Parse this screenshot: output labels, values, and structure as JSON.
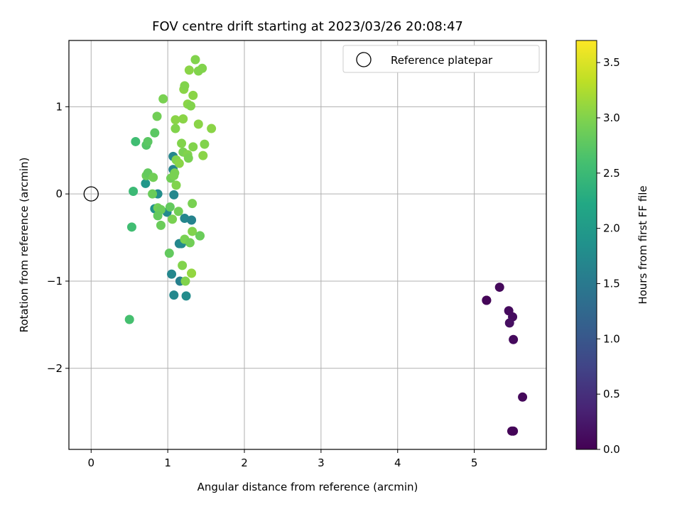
{
  "chart_data": {
    "type": "scatter",
    "title": "FOV centre drift starting at 2023/03/26 20:08:47",
    "xlabel": "Angular distance from reference (arcmin)",
    "ylabel": "Rotation from reference (arcmin)",
    "xlim": [
      -0.29,
      5.94
    ],
    "ylim": [
      -2.93,
      1.76
    ],
    "xticks": [
      0,
      1,
      2,
      3,
      4,
      5
    ],
    "yticks": [
      -2,
      -1,
      0,
      1
    ],
    "xtick_labels": [
      "0",
      "1",
      "2",
      "3",
      "4",
      "5"
    ],
    "ytick_labels": [
      "−2",
      "−1",
      "0",
      "1"
    ],
    "grid": true,
    "legend": {
      "location": "upper-right",
      "entries": [
        "Reference platepar"
      ]
    },
    "reference_point": {
      "label": "Reference platepar",
      "x": 0.0,
      "y": 0.0,
      "marker": "open-circle"
    },
    "colorbar": {
      "label": "Hours from first FF file",
      "colormap": "viridis",
      "range": [
        0.0,
        3.7
      ],
      "ticks": [
        0.0,
        0.5,
        1.0,
        1.5,
        2.0,
        2.5,
        3.0,
        3.5
      ],
      "tick_labels": [
        "0.0",
        "0.5",
        "1.0",
        "1.5",
        "2.0",
        "2.5",
        "3.0",
        "3.5"
      ]
    },
    "series": [
      {
        "points": [
          {
            "x": 5.16,
            "y": -1.22,
            "c": 0.02
          },
          {
            "x": 5.16,
            "y": -1.22,
            "c": 0.05
          },
          {
            "x": 5.33,
            "y": -1.07,
            "c": 0.08
          },
          {
            "x": 5.45,
            "y": -1.34,
            "c": 0.1
          },
          {
            "x": 5.5,
            "y": -1.41,
            "c": 0.12
          },
          {
            "x": 5.46,
            "y": -1.48,
            "c": 0.15
          },
          {
            "x": 5.51,
            "y": -1.67,
            "c": 0.1
          },
          {
            "x": 5.63,
            "y": -2.33,
            "c": 0.08
          },
          {
            "x": 5.49,
            "y": -2.72,
            "c": 0.05
          },
          {
            "x": 5.51,
            "y": -2.72,
            "c": 0.04
          },
          {
            "x": 1.07,
            "y": 0.43,
            "c": 1.7
          },
          {
            "x": 1.07,
            "y": 0.28,
            "c": 1.65
          },
          {
            "x": 1.08,
            "y": -0.01,
            "c": 1.72
          },
          {
            "x": 0.87,
            "y": 0.0,
            "c": 1.8
          },
          {
            "x": 0.83,
            "y": -0.17,
            "c": 1.85
          },
          {
            "x": 0.99,
            "y": -0.21,
            "c": 1.75
          },
          {
            "x": 1.22,
            "y": -0.28,
            "c": 1.7
          },
          {
            "x": 1.31,
            "y": -0.3,
            "c": 1.65
          },
          {
            "x": 1.15,
            "y": -0.57,
            "c": 1.7
          },
          {
            "x": 1.18,
            "y": -0.57,
            "c": 1.75
          },
          {
            "x": 1.05,
            "y": -0.92,
            "c": 1.7
          },
          {
            "x": 1.16,
            "y": -1.0,
            "c": 1.6
          },
          {
            "x": 1.08,
            "y": -1.16,
            "c": 1.72
          },
          {
            "x": 1.24,
            "y": -1.17,
            "c": 1.78
          },
          {
            "x": 0.71,
            "y": 0.12,
            "c": 1.95
          },
          {
            "x": 0.58,
            "y": 0.6,
            "c": 2.55
          },
          {
            "x": 0.55,
            "y": 0.03,
            "c": 2.5
          },
          {
            "x": 0.53,
            "y": -0.38,
            "c": 2.55
          },
          {
            "x": 0.5,
            "y": -1.44,
            "c": 2.6
          },
          {
            "x": 0.72,
            "y": 0.56,
            "c": 2.7
          },
          {
            "x": 0.74,
            "y": 0.6,
            "c": 2.75
          },
          {
            "x": 0.83,
            "y": 0.7,
            "c": 2.75
          },
          {
            "x": 0.86,
            "y": 0.89,
            "c": 2.9
          },
          {
            "x": 0.94,
            "y": 1.09,
            "c": 2.95
          },
          {
            "x": 0.72,
            "y": 0.21,
            "c": 2.85
          },
          {
            "x": 0.74,
            "y": 0.24,
            "c": 2.8
          },
          {
            "x": 0.81,
            "y": 0.19,
            "c": 2.9
          },
          {
            "x": 0.8,
            "y": 0.0,
            "c": 2.85
          },
          {
            "x": 0.87,
            "y": -0.16,
            "c": 2.9
          },
          {
            "x": 0.91,
            "y": -0.18,
            "c": 2.85
          },
          {
            "x": 0.87,
            "y": -0.25,
            "c": 2.8
          },
          {
            "x": 0.91,
            "y": -0.36,
            "c": 2.85
          },
          {
            "x": 1.03,
            "y": -0.15,
            "c": 2.8
          },
          {
            "x": 1.06,
            "y": -0.29,
            "c": 2.95
          },
          {
            "x": 1.02,
            "y": -0.68,
            "c": 2.8
          },
          {
            "x": 1.04,
            "y": 0.18,
            "c": 2.9
          },
          {
            "x": 1.08,
            "y": 0.21,
            "c": 2.95
          },
          {
            "x": 1.09,
            "y": 0.24,
            "c": 2.95
          },
          {
            "x": 1.11,
            "y": 0.1,
            "c": 3.0
          },
          {
            "x": 1.11,
            "y": 0.39,
            "c": 3.0
          },
          {
            "x": 1.15,
            "y": 0.35,
            "c": 3.05
          },
          {
            "x": 1.1,
            "y": 0.75,
            "c": 3.0
          },
          {
            "x": 1.1,
            "y": 0.85,
            "c": 3.05
          },
          {
            "x": 1.2,
            "y": 0.86,
            "c": 3.05
          },
          {
            "x": 1.18,
            "y": 0.58,
            "c": 3.0
          },
          {
            "x": 1.2,
            "y": 0.48,
            "c": 2.95
          },
          {
            "x": 1.26,
            "y": 0.45,
            "c": 3.0
          },
          {
            "x": 1.27,
            "y": 0.41,
            "c": 2.95
          },
          {
            "x": 1.21,
            "y": 1.2,
            "c": 3.05
          },
          {
            "x": 1.22,
            "y": 1.24,
            "c": 3.0
          },
          {
            "x": 1.26,
            "y": 1.03,
            "c": 3.05
          },
          {
            "x": 1.3,
            "y": 1.01,
            "c": 3.0
          },
          {
            "x": 1.33,
            "y": 1.13,
            "c": 3.05
          },
          {
            "x": 1.28,
            "y": 1.42,
            "c": 3.05
          },
          {
            "x": 1.36,
            "y": 1.54,
            "c": 3.0
          },
          {
            "x": 1.4,
            "y": 1.41,
            "c": 3.0
          },
          {
            "x": 1.45,
            "y": 1.44,
            "c": 3.0
          },
          {
            "x": 1.4,
            "y": 0.8,
            "c": 3.05
          },
          {
            "x": 1.33,
            "y": 0.54,
            "c": 3.0
          },
          {
            "x": 1.46,
            "y": 0.44,
            "c": 3.05
          },
          {
            "x": 1.48,
            "y": 0.57,
            "c": 3.0
          },
          {
            "x": 1.57,
            "y": 0.75,
            "c": 3.05
          },
          {
            "x": 1.14,
            "y": -0.2,
            "c": 2.9
          },
          {
            "x": 1.22,
            "y": -0.52,
            "c": 2.95
          },
          {
            "x": 1.29,
            "y": -0.56,
            "c": 2.9
          },
          {
            "x": 1.32,
            "y": -0.43,
            "c": 3.0
          },
          {
            "x": 1.42,
            "y": -0.48,
            "c": 2.9
          },
          {
            "x": 1.42,
            "y": -0.48,
            "c": 2.85
          },
          {
            "x": 1.32,
            "y": -0.11,
            "c": 2.95
          },
          {
            "x": 1.19,
            "y": -0.82,
            "c": 3.0
          },
          {
            "x": 1.31,
            "y": -0.91,
            "c": 3.1
          },
          {
            "x": 1.31,
            "y": -0.91,
            "c": 3.1
          },
          {
            "x": 1.23,
            "y": -1.0,
            "c": 3.0
          }
        ]
      }
    ]
  }
}
